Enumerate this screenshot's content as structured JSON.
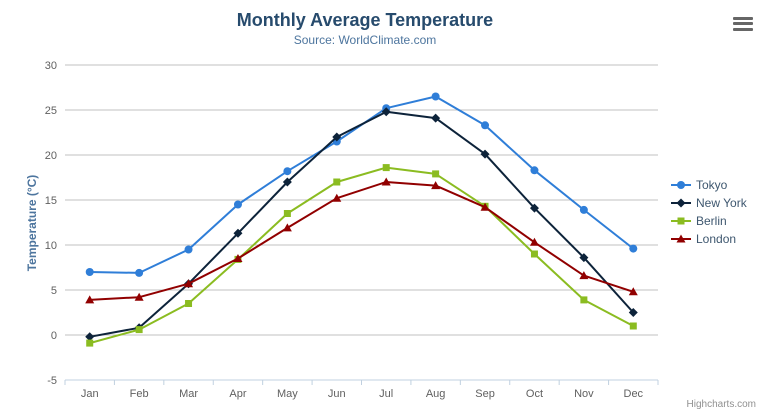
{
  "credits": "Highcharts.com",
  "icons": {
    "context_menu": "hamburger-menu-icon"
  },
  "palette": {
    "title": "#274b6d",
    "subtitle": "#4d759e",
    "axis_title": "#4d759e",
    "axis_label": "#606060",
    "legend_text": "#3E576F",
    "grid_line": "#C0C0C0",
    "axis_line": "#C0D0E0",
    "credits": "#909090"
  },
  "chart_data": {
    "type": "line",
    "title": "Monthly Average Temperature",
    "subtitle": "Source: WorldClimate.com",
    "categories": [
      "Jan",
      "Feb",
      "Mar",
      "Apr",
      "May",
      "Jun",
      "Jul",
      "Aug",
      "Sep",
      "Oct",
      "Nov",
      "Dec"
    ],
    "xlabel": "",
    "ylabel": "Temperature (°C)",
    "ylim": [
      -5,
      30
    ],
    "ytick_interval": 5,
    "grid": true,
    "legend_position": "right",
    "series": [
      {
        "name": "Tokyo",
        "color": "#2f7ed8",
        "marker": "circle",
        "values": [
          7.0,
          6.9,
          9.5,
          14.5,
          18.2,
          21.5,
          25.2,
          26.5,
          23.3,
          18.3,
          13.9,
          9.6
        ]
      },
      {
        "name": "New York",
        "color": "#0d233a",
        "marker": "diamond",
        "values": [
          -0.2,
          0.8,
          5.7,
          11.3,
          17.0,
          22.0,
          24.8,
          24.1,
          20.1,
          14.1,
          8.6,
          2.5
        ]
      },
      {
        "name": "Berlin",
        "color": "#8bbc21",
        "marker": "square",
        "values": [
          -0.9,
          0.6,
          3.5,
          8.4,
          13.5,
          17.0,
          18.6,
          17.9,
          14.3,
          9.0,
          3.9,
          1.0
        ]
      },
      {
        "name": "London",
        "color": "#910000",
        "marker": "triangle",
        "values": [
          3.9,
          4.2,
          5.7,
          8.5,
          11.9,
          15.2,
          17.0,
          16.6,
          14.2,
          10.3,
          6.6,
          4.8
        ]
      }
    ]
  }
}
